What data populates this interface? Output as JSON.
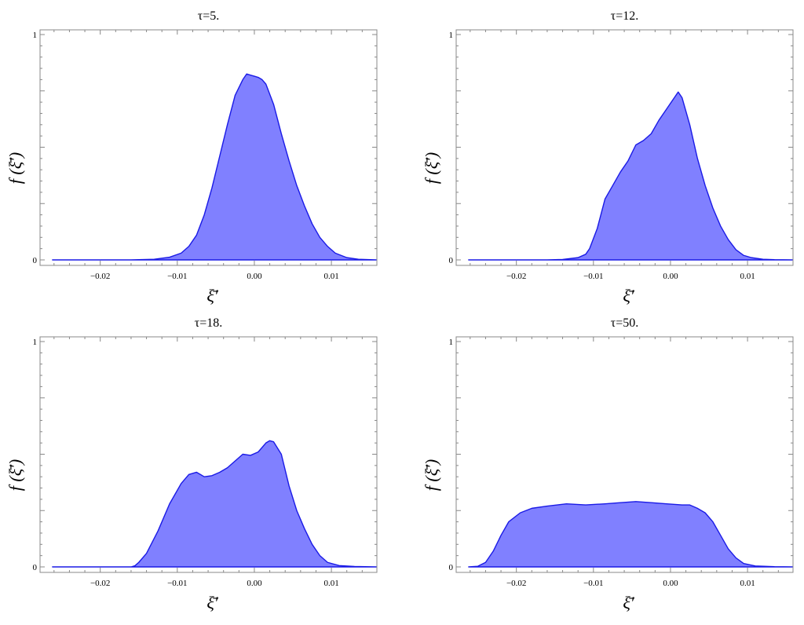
{
  "chart_data": [
    {
      "type": "area",
      "title": "τ=5.",
      "xlabel": "ξ̄′",
      "ylabel": "f (ξ̄′)",
      "xlim": [
        -0.027,
        0.0158
      ],
      "ylim": [
        0,
        1
      ],
      "xticks": [
        "-0.02",
        "-0.01",
        "0.00",
        "0.01"
      ],
      "yticks": [
        "0",
        "1"
      ],
      "x": [
        -0.0262,
        -0.016,
        -0.013,
        -0.011,
        -0.0095,
        -0.0085,
        -0.0075,
        -0.0065,
        -0.0055,
        -0.0045,
        -0.0035,
        -0.0025,
        -0.0015,
        -0.001,
        -0.0005,
        0.0,
        0.0005,
        0.001,
        0.0015,
        0.0025,
        0.0035,
        0.0045,
        0.0055,
        0.0065,
        0.0075,
        0.0085,
        0.0095,
        0.0105,
        0.012,
        0.0135,
        0.0158
      ],
      "values": [
        0.0,
        0.0,
        0.003,
        0.012,
        0.03,
        0.06,
        0.11,
        0.2,
        0.32,
        0.46,
        0.6,
        0.73,
        0.8,
        0.825,
        0.82,
        0.815,
        0.81,
        0.8,
        0.78,
        0.69,
        0.56,
        0.44,
        0.33,
        0.24,
        0.16,
        0.1,
        0.06,
        0.03,
        0.01,
        0.003,
        0.0
      ]
    },
    {
      "type": "area",
      "title": "τ=12.",
      "xlabel": "ξ̄′",
      "ylabel": "f (ξ̄′)",
      "xlim": [
        -0.027,
        0.0158
      ],
      "ylim": [
        0,
        1
      ],
      "xticks": [
        "-0.02",
        "-0.01",
        "0.00",
        "0.01"
      ],
      "yticks": [
        "0",
        "1"
      ],
      "x": [
        -0.0262,
        -0.016,
        -0.014,
        -0.012,
        -0.011,
        -0.0105,
        -0.0095,
        -0.0085,
        -0.0075,
        -0.0065,
        -0.0055,
        -0.0045,
        -0.0035,
        -0.0025,
        -0.0015,
        -0.0005,
        0.0005,
        0.001,
        0.0015,
        0.0025,
        0.0035,
        0.0045,
        0.0055,
        0.0065,
        0.0075,
        0.0085,
        0.0095,
        0.0105,
        0.012,
        0.0135,
        0.0158
      ],
      "values": [
        0.0,
        0.0,
        0.002,
        0.01,
        0.025,
        0.05,
        0.14,
        0.27,
        0.33,
        0.39,
        0.44,
        0.51,
        0.53,
        0.56,
        0.62,
        0.67,
        0.72,
        0.745,
        0.72,
        0.6,
        0.45,
        0.33,
        0.23,
        0.15,
        0.09,
        0.045,
        0.02,
        0.01,
        0.003,
        0.001,
        0.0
      ]
    },
    {
      "type": "area",
      "title": "τ=18.",
      "xlabel": "ξ̄′",
      "ylabel": "f (ξ̄′)",
      "xlim": [
        -0.027,
        0.0158
      ],
      "ylim": [
        0,
        1
      ],
      "xticks": [
        "-0.02",
        "-0.01",
        "0.00",
        "0.01"
      ],
      "yticks": [
        "0",
        "1"
      ],
      "x": [
        -0.0262,
        -0.016,
        -0.0155,
        -0.015,
        -0.014,
        -0.0125,
        -0.011,
        -0.0095,
        -0.0085,
        -0.0075,
        -0.0065,
        -0.0055,
        -0.0045,
        -0.0035,
        -0.0025,
        -0.0015,
        -0.0005,
        0.0005,
        0.0015,
        0.002,
        0.0025,
        0.0035,
        0.0045,
        0.0055,
        0.0065,
        0.0075,
        0.0085,
        0.0095,
        0.011,
        0.013,
        0.0158
      ],
      "values": [
        0.0,
        0.0,
        0.005,
        0.02,
        0.06,
        0.16,
        0.28,
        0.37,
        0.41,
        0.42,
        0.4,
        0.405,
        0.42,
        0.44,
        0.47,
        0.5,
        0.495,
        0.51,
        0.55,
        0.56,
        0.555,
        0.5,
        0.36,
        0.25,
        0.17,
        0.1,
        0.05,
        0.02,
        0.006,
        0.002,
        0.0
      ]
    },
    {
      "type": "area",
      "title": "τ=50.",
      "xlabel": "ξ̄′",
      "ylabel": "f (ξ̄′)",
      "xlim": [
        -0.027,
        0.0158
      ],
      "ylim": [
        0,
        1
      ],
      "xticks": [
        "-0.02",
        "-0.01",
        "0.00",
        "0.01"
      ],
      "yticks": [
        "0",
        "1"
      ],
      "x": [
        -0.0262,
        -0.025,
        -0.024,
        -0.023,
        -0.022,
        -0.021,
        -0.0195,
        -0.018,
        -0.016,
        -0.0135,
        -0.011,
        -0.0085,
        -0.0065,
        -0.0045,
        -0.0025,
        -0.0005,
        0.0015,
        0.0025,
        0.0035,
        0.0045,
        0.0055,
        0.0065,
        0.0075,
        0.0085,
        0.0095,
        0.011,
        0.0135,
        0.0158
      ],
      "values": [
        0.0,
        0.003,
        0.02,
        0.07,
        0.14,
        0.2,
        0.24,
        0.26,
        0.27,
        0.28,
        0.275,
        0.28,
        0.285,
        0.29,
        0.285,
        0.28,
        0.275,
        0.275,
        0.26,
        0.24,
        0.2,
        0.14,
        0.08,
        0.04,
        0.015,
        0.004,
        0.001,
        0.0
      ]
    }
  ]
}
